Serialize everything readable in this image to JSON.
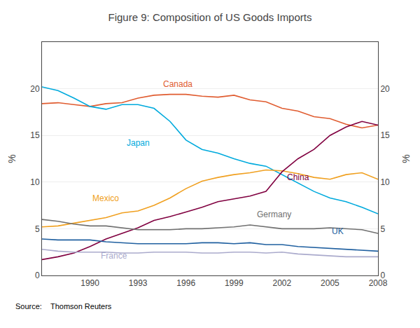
{
  "chart_data": {
    "type": "line",
    "title": "Figure 9: Composition of US Goods Imports",
    "ylabel": "%",
    "y2label": "%",
    "x": [
      1987,
      1988,
      1989,
      1990,
      1991,
      1992,
      1993,
      1994,
      1995,
      1996,
      1997,
      1998,
      1999,
      2000,
      2001,
      2002,
      2003,
      2004,
      2005,
      2006,
      2007,
      2008
    ],
    "series": [
      {
        "name": "Canada",
        "color": "#E05C30",
        "values": [
          18.4,
          18.5,
          18.3,
          18.1,
          18.4,
          18.5,
          19.0,
          19.3,
          19.4,
          19.4,
          19.2,
          19.1,
          19.3,
          18.8,
          18.6,
          17.9,
          17.6,
          17.0,
          16.8,
          16.2,
          15.8,
          16.1
        ]
      },
      {
        "name": "Japan",
        "color": "#00AADD",
        "values": [
          20.2,
          19.8,
          19.0,
          18.1,
          17.8,
          18.3,
          18.3,
          17.9,
          16.5,
          14.5,
          13.5,
          13.1,
          12.5,
          12.0,
          11.7,
          10.8,
          9.9,
          9.0,
          8.3,
          7.9,
          7.3,
          6.6
        ]
      },
      {
        "name": "Mexico",
        "color": "#F0A020",
        "values": [
          5.2,
          5.3,
          5.6,
          5.9,
          6.2,
          6.7,
          6.9,
          7.5,
          8.3,
          9.3,
          10.1,
          10.5,
          10.8,
          11.0,
          11.3,
          11.2,
          10.9,
          10.5,
          10.3,
          10.8,
          11.0,
          10.3
        ]
      },
      {
        "name": "China",
        "color": "#800040",
        "values": [
          1.7,
          2.0,
          2.4,
          3.1,
          3.9,
          4.5,
          5.1,
          5.9,
          6.3,
          6.8,
          7.3,
          7.9,
          8.2,
          8.5,
          9.0,
          11.1,
          12.5,
          13.5,
          15.0,
          15.9,
          16.5,
          16.1
        ]
      },
      {
        "name": "Germany",
        "color": "#707070",
        "values": [
          6.0,
          5.8,
          5.5,
          5.3,
          5.3,
          5.1,
          4.9,
          4.9,
          4.9,
          5.0,
          5.0,
          5.1,
          5.2,
          5.4,
          5.2,
          5.0,
          5.0,
          5.0,
          5.1,
          5.0,
          4.9,
          4.5
        ]
      },
      {
        "name": "UK",
        "color": "#2060A0",
        "values": [
          3.9,
          3.8,
          3.8,
          3.8,
          3.6,
          3.5,
          3.4,
          3.4,
          3.4,
          3.4,
          3.5,
          3.5,
          3.4,
          3.5,
          3.3,
          3.3,
          3.1,
          3.0,
          2.9,
          2.8,
          2.7,
          2.6
        ]
      },
      {
        "name": "France",
        "color": "#AAAACC",
        "values": [
          2.8,
          2.6,
          2.5,
          2.5,
          2.5,
          2.4,
          2.4,
          2.5,
          2.5,
          2.5,
          2.4,
          2.4,
          2.5,
          2.5,
          2.4,
          2.5,
          2.3,
          2.2,
          2.1,
          2.0,
          2.0,
          2.0
        ]
      }
    ],
    "annotations": [
      {
        "text": "Canada",
        "x": 1995.5,
        "y": 19.8,
        "color": "#E05C30"
      },
      {
        "text": "Japan",
        "x": 1993.0,
        "y": 13.5,
        "color": "#00AADD"
      },
      {
        "text": "Mexico",
        "x": 1991.0,
        "y": 7.6,
        "color": "#F0A020"
      },
      {
        "text": "China",
        "x": 2003.0,
        "y": 9.8,
        "color": "#800040"
      },
      {
        "text": "Germany",
        "x": 2001.5,
        "y": 5.85,
        "color": "#707070"
      },
      {
        "text": "UK",
        "x": 2005.5,
        "y": 4.05,
        "color": "#2060A0"
      },
      {
        "text": "France",
        "x": 1991.5,
        "y": 1.45,
        "color": "#AAAACC"
      },
      {
        "text": "Source:    Thomson Reuters"
      }
    ],
    "xlim": [
      1987,
      2008
    ],
    "xticks": [
      1990,
      1993,
      1996,
      1999,
      2002,
      2005,
      2008
    ],
    "ylim": [
      0,
      25
    ],
    "yticks": [
      0,
      5,
      10,
      15,
      20
    ],
    "y2lim": [
      0,
      25
    ],
    "y2ticks": [
      0,
      5,
      10,
      15,
      20
    ],
    "grid": true
  }
}
